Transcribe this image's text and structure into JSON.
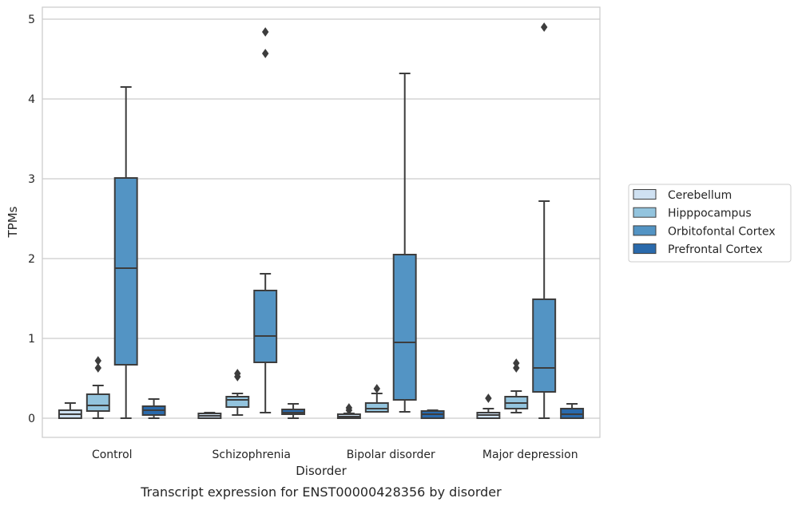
{
  "chart_data": {
    "type": "box",
    "title": "",
    "caption": "Transcript expression for ENST00000428356 by disorder",
    "xlabel": "Disorder",
    "ylabel": "TPMs",
    "ylim": [
      -0.24,
      5.15
    ],
    "yticks": [
      "0",
      "1",
      "2",
      "3",
      "4",
      "5"
    ],
    "grid": "horizontal",
    "legend_position": "right",
    "categories": [
      "Control",
      "Schizophrenia",
      "Bipolar disorder",
      "Major depression"
    ],
    "series": [
      {
        "name": "Cerebellum",
        "color": "#cfe1f2",
        "boxes": [
          {
            "whisker_low": 0.0,
            "q1": 0.0,
            "median": 0.05,
            "q3": 0.1,
            "whisker_high": 0.19,
            "outliers": []
          },
          {
            "whisker_low": 0.0,
            "q1": 0.0,
            "median": 0.03,
            "q3": 0.06,
            "whisker_high": 0.07,
            "outliers": []
          },
          {
            "whisker_low": 0.0,
            "q1": 0.0,
            "median": 0.02,
            "q3": 0.05,
            "whisker_high": 0.06,
            "outliers": [
              0.1,
              0.13
            ]
          },
          {
            "whisker_low": 0.0,
            "q1": 0.0,
            "median": 0.04,
            "q3": 0.07,
            "whisker_high": 0.12,
            "outliers": [
              0.25
            ]
          }
        ]
      },
      {
        "name": "Hipppocampus",
        "color": "#93c4de",
        "boxes": [
          {
            "whisker_low": 0.0,
            "q1": 0.09,
            "median": 0.16,
            "q3": 0.3,
            "whisker_high": 0.41,
            "outliers": [
              0.63,
              0.72
            ]
          },
          {
            "whisker_low": 0.04,
            "q1": 0.14,
            "median": 0.23,
            "q3": 0.27,
            "whisker_high": 0.31,
            "outliers": [
              0.52,
              0.56
            ]
          },
          {
            "whisker_low": 0.08,
            "q1": 0.08,
            "median": 0.12,
            "q3": 0.19,
            "whisker_high": 0.31,
            "outliers": [
              0.37
            ]
          },
          {
            "whisker_low": 0.07,
            "q1": 0.12,
            "median": 0.19,
            "q3": 0.27,
            "whisker_high": 0.34,
            "outliers": [
              0.63,
              0.69
            ]
          }
        ]
      },
      {
        "name": "Orbitofontal Cortex",
        "color": "#5394c4",
        "boxes": [
          {
            "whisker_low": 0.0,
            "q1": 0.67,
            "median": 1.88,
            "q3": 3.01,
            "whisker_high": 4.15,
            "outliers": []
          },
          {
            "whisker_low": 0.07,
            "q1": 0.7,
            "median": 1.03,
            "q3": 1.6,
            "whisker_high": 1.81,
            "outliers": [
              4.57,
              4.84
            ]
          },
          {
            "whisker_low": 0.08,
            "q1": 0.23,
            "median": 0.95,
            "q3": 2.05,
            "whisker_high": 4.32,
            "outliers": []
          },
          {
            "whisker_low": 0.0,
            "q1": 0.33,
            "median": 0.63,
            "q3": 1.49,
            "whisker_high": 2.72,
            "outliers": [
              4.9
            ]
          }
        ]
      },
      {
        "name": "Prefrontal Cortex",
        "color": "#2a6aac",
        "boxes": [
          {
            "whisker_low": 0.0,
            "q1": 0.04,
            "median": 0.1,
            "q3": 0.15,
            "whisker_high": 0.24,
            "outliers": []
          },
          {
            "whisker_low": 0.0,
            "q1": 0.05,
            "median": 0.07,
            "q3": 0.11,
            "whisker_high": 0.18,
            "outliers": []
          },
          {
            "whisker_low": 0.0,
            "q1": 0.0,
            "median": 0.05,
            "q3": 0.09,
            "whisker_high": 0.1,
            "outliers": []
          },
          {
            "whisker_low": 0.0,
            "q1": 0.0,
            "median": 0.05,
            "q3": 0.12,
            "whisker_high": 0.18,
            "outliers": []
          }
        ]
      }
    ]
  }
}
